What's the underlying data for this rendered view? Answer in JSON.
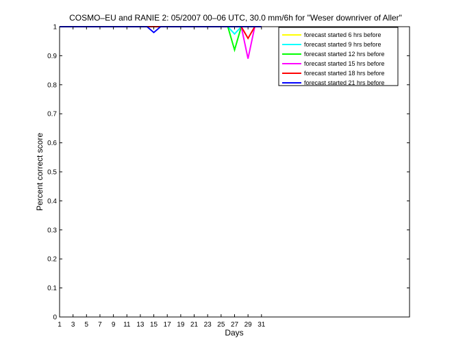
{
  "chart_data": {
    "type": "line",
    "title": "COSMO–EU and RANIE 2: 05/2007 00–06 UTC, 30.0 mm/6h for \"Weser downriver of Aller\"",
    "xlabel": "Days",
    "ylabel": "Percent correct score",
    "xlim": [
      1,
      53
    ],
    "ylim": [
      0,
      1
    ],
    "x_ticks": [
      1,
      3,
      5,
      7,
      9,
      11,
      13,
      15,
      17,
      19,
      21,
      23,
      25,
      27,
      29,
      31
    ],
    "y_ticks": [
      0,
      0.1,
      0.2,
      0.3,
      0.4,
      0.5,
      0.6,
      0.7,
      0.8,
      0.9,
      1
    ],
    "grid": false,
    "legend_position": "top-right",
    "x": [
      1,
      2,
      3,
      4,
      5,
      6,
      7,
      8,
      9,
      10,
      11,
      12,
      13,
      14,
      15,
      16,
      17,
      18,
      19,
      20,
      21,
      22,
      23,
      24,
      25,
      26,
      27,
      28,
      29,
      30,
      31
    ],
    "series": [
      {
        "name": "forecast started 6 hrs before",
        "color": "#ffff00",
        "values": [
          1,
          1,
          1,
          1,
          1,
          1,
          1,
          1,
          1,
          1,
          1,
          1,
          1,
          1,
          1,
          1,
          1,
          1,
          1,
          1,
          1,
          1,
          1,
          1,
          1,
          1,
          1,
          1,
          1,
          1,
          1
        ]
      },
      {
        "name": "forecast started 9 hrs before",
        "color": "#00ffff",
        "values": [
          1,
          1,
          1,
          1,
          1,
          1,
          1,
          1,
          1,
          1,
          1,
          1,
          1,
          1,
          1,
          1,
          1,
          1,
          1,
          1,
          1,
          1,
          1,
          1,
          1,
          1,
          0.975,
          1,
          1,
          1,
          1
        ]
      },
      {
        "name": "forecast started 12 hrs before",
        "color": "#00ff00",
        "values": [
          1,
          1,
          1,
          1,
          1,
          1,
          1,
          1,
          1,
          1,
          1,
          1,
          1,
          1,
          1,
          1,
          1,
          1,
          1,
          1,
          1,
          1,
          1,
          1,
          1,
          1,
          0.92,
          1,
          1,
          1,
          1
        ]
      },
      {
        "name": "forecast started 15 hrs before",
        "color": "#ff00ff",
        "values": [
          1,
          1,
          1,
          1,
          1,
          1,
          1,
          1,
          1,
          1,
          1,
          1,
          1,
          1,
          1,
          1,
          1,
          1,
          1,
          1,
          1,
          1,
          1,
          1,
          1,
          1,
          1,
          1,
          0.89,
          1,
          1
        ]
      },
      {
        "name": "forecast started 18 hrs before",
        "color": "#ff0000",
        "values": [
          1,
          1,
          1,
          1,
          1,
          1,
          1,
          1,
          1,
          1,
          1,
          1,
          1,
          1,
          1,
          1,
          1,
          1,
          1,
          1,
          1,
          1,
          1,
          1,
          1,
          1,
          1,
          1,
          0.96,
          1,
          1
        ]
      },
      {
        "name": "forecast started 21 hrs before",
        "color": "#0000ff",
        "values": [
          1,
          1,
          1,
          1,
          1,
          1,
          1,
          1,
          1,
          1,
          1,
          1,
          1,
          1,
          0.98,
          1,
          1,
          1,
          1,
          1,
          1,
          1,
          1,
          1,
          1,
          1,
          1,
          1,
          1,
          1,
          1
        ]
      }
    ]
  }
}
